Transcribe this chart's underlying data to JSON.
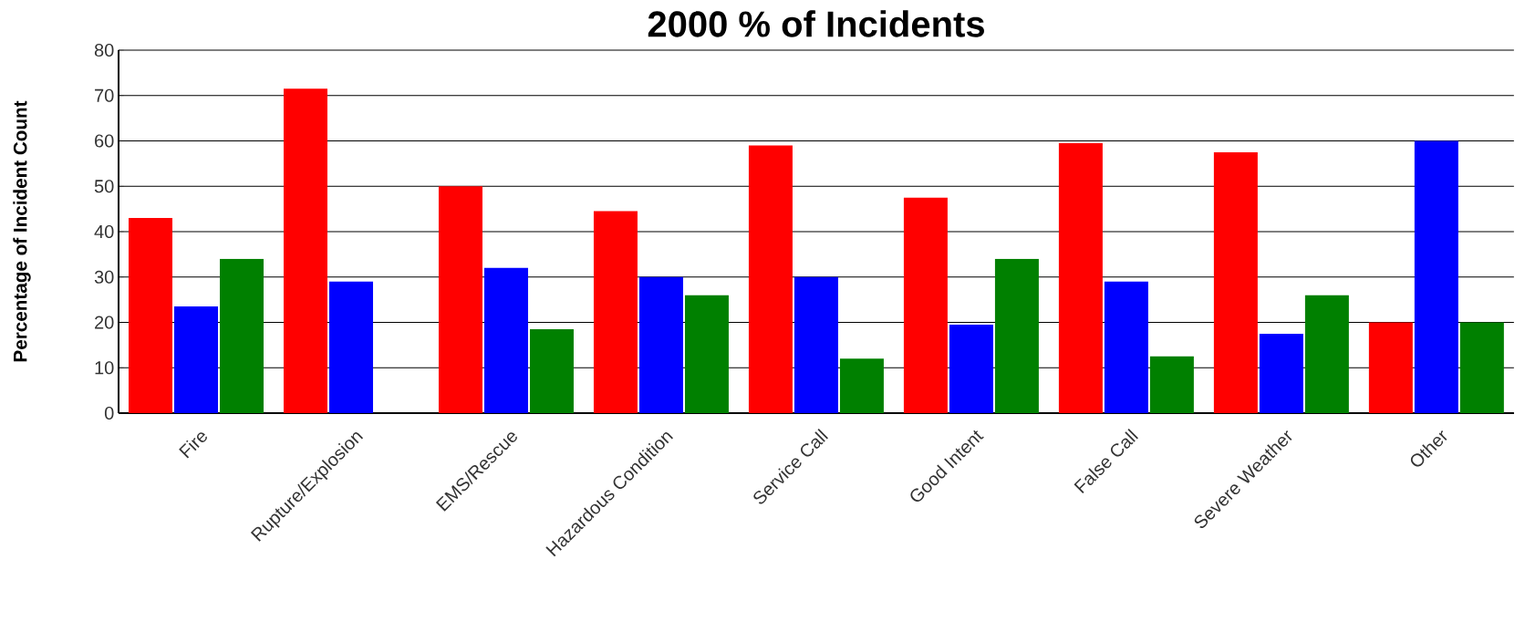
{
  "chart_data": {
    "type": "bar",
    "title": "2000 % of Incidents",
    "ylabel": "Percentage of Incident Count",
    "categories": [
      "Fire",
      "Rupture/Explosion",
      "EMS/Rescue",
      "Hazardous Condition",
      "Service Call",
      "Good Intent",
      "False Call",
      "Severe Weather",
      "Other"
    ],
    "series": [
      {
        "color": "#ff0000",
        "values": [
          43,
          71.5,
          50,
          44.5,
          59,
          47.5,
          59.5,
          57.5,
          20
        ]
      },
      {
        "color": "#0000ff",
        "values": [
          23.5,
          29,
          32,
          30,
          30,
          19.5,
          29,
          17.5,
          60
        ]
      },
      {
        "color": "#008000",
        "values": [
          34,
          null,
          18.5,
          26,
          12,
          34,
          12.5,
          26,
          20
        ]
      }
    ],
    "ylim": [
      0,
      80
    ],
    "yticks": [
      0,
      10,
      20,
      30,
      40,
      50,
      60,
      70,
      80
    ],
    "grid": "y"
  }
}
